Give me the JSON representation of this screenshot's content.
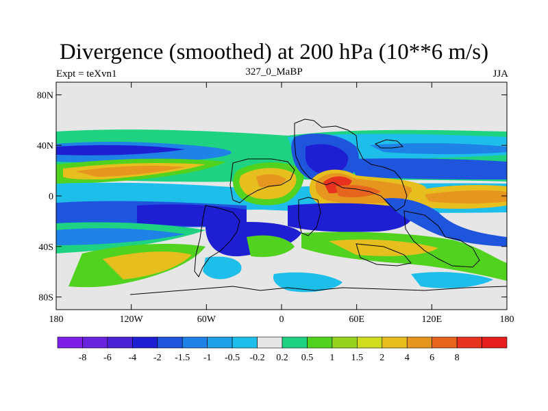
{
  "title": "Divergence (smoothed) at 200 hPa (10**6 m/s)",
  "subtitle_left": "Expt = teXvn1",
  "subtitle_center": "327_0_MaBP",
  "subtitle_right": "JJA",
  "map": {
    "projection": "cylindrical-equidistant",
    "lon_range": [
      -180,
      180
    ],
    "lat_range": [
      -90,
      90
    ],
    "lat_ticks": [
      {
        "value": 80,
        "label": "80N"
      },
      {
        "value": 40,
        "label": "40N"
      },
      {
        "value": 0,
        "label": "0"
      },
      {
        "value": -40,
        "label": "40S"
      },
      {
        "value": -80,
        "label": "80S"
      }
    ],
    "lon_ticks": [
      {
        "value": -180,
        "label": "180"
      },
      {
        "value": -120,
        "label": "120W"
      },
      {
        "value": -60,
        "label": "60W"
      },
      {
        "value": 0,
        "label": "0"
      },
      {
        "value": 60,
        "label": "60E"
      },
      {
        "value": 120,
        "label": "120E"
      },
      {
        "value": 180,
        "label": "180"
      }
    ],
    "background_color": "#e6e6e6"
  },
  "colorbar": {
    "colors": [
      "#7d1ee6",
      "#6a23dc",
      "#4a23d7",
      "#1e1ed2",
      "#1e55dc",
      "#1e82e6",
      "#1ea0e6",
      "#1ebeeb",
      "#e6e6e6",
      "#1ed282",
      "#50d21e",
      "#96d21e",
      "#d2dc1e",
      "#e6be1e",
      "#e6961e",
      "#e6641e",
      "#e6321e",
      "#e61e1e"
    ],
    "labels": [
      "-8",
      "-6",
      "-4",
      "-2",
      "-1.5",
      "-1",
      "-0.5",
      "-0.2",
      "0.2",
      "0.5",
      "1",
      "1.5",
      "2",
      "4",
      "6",
      "8"
    ]
  }
}
